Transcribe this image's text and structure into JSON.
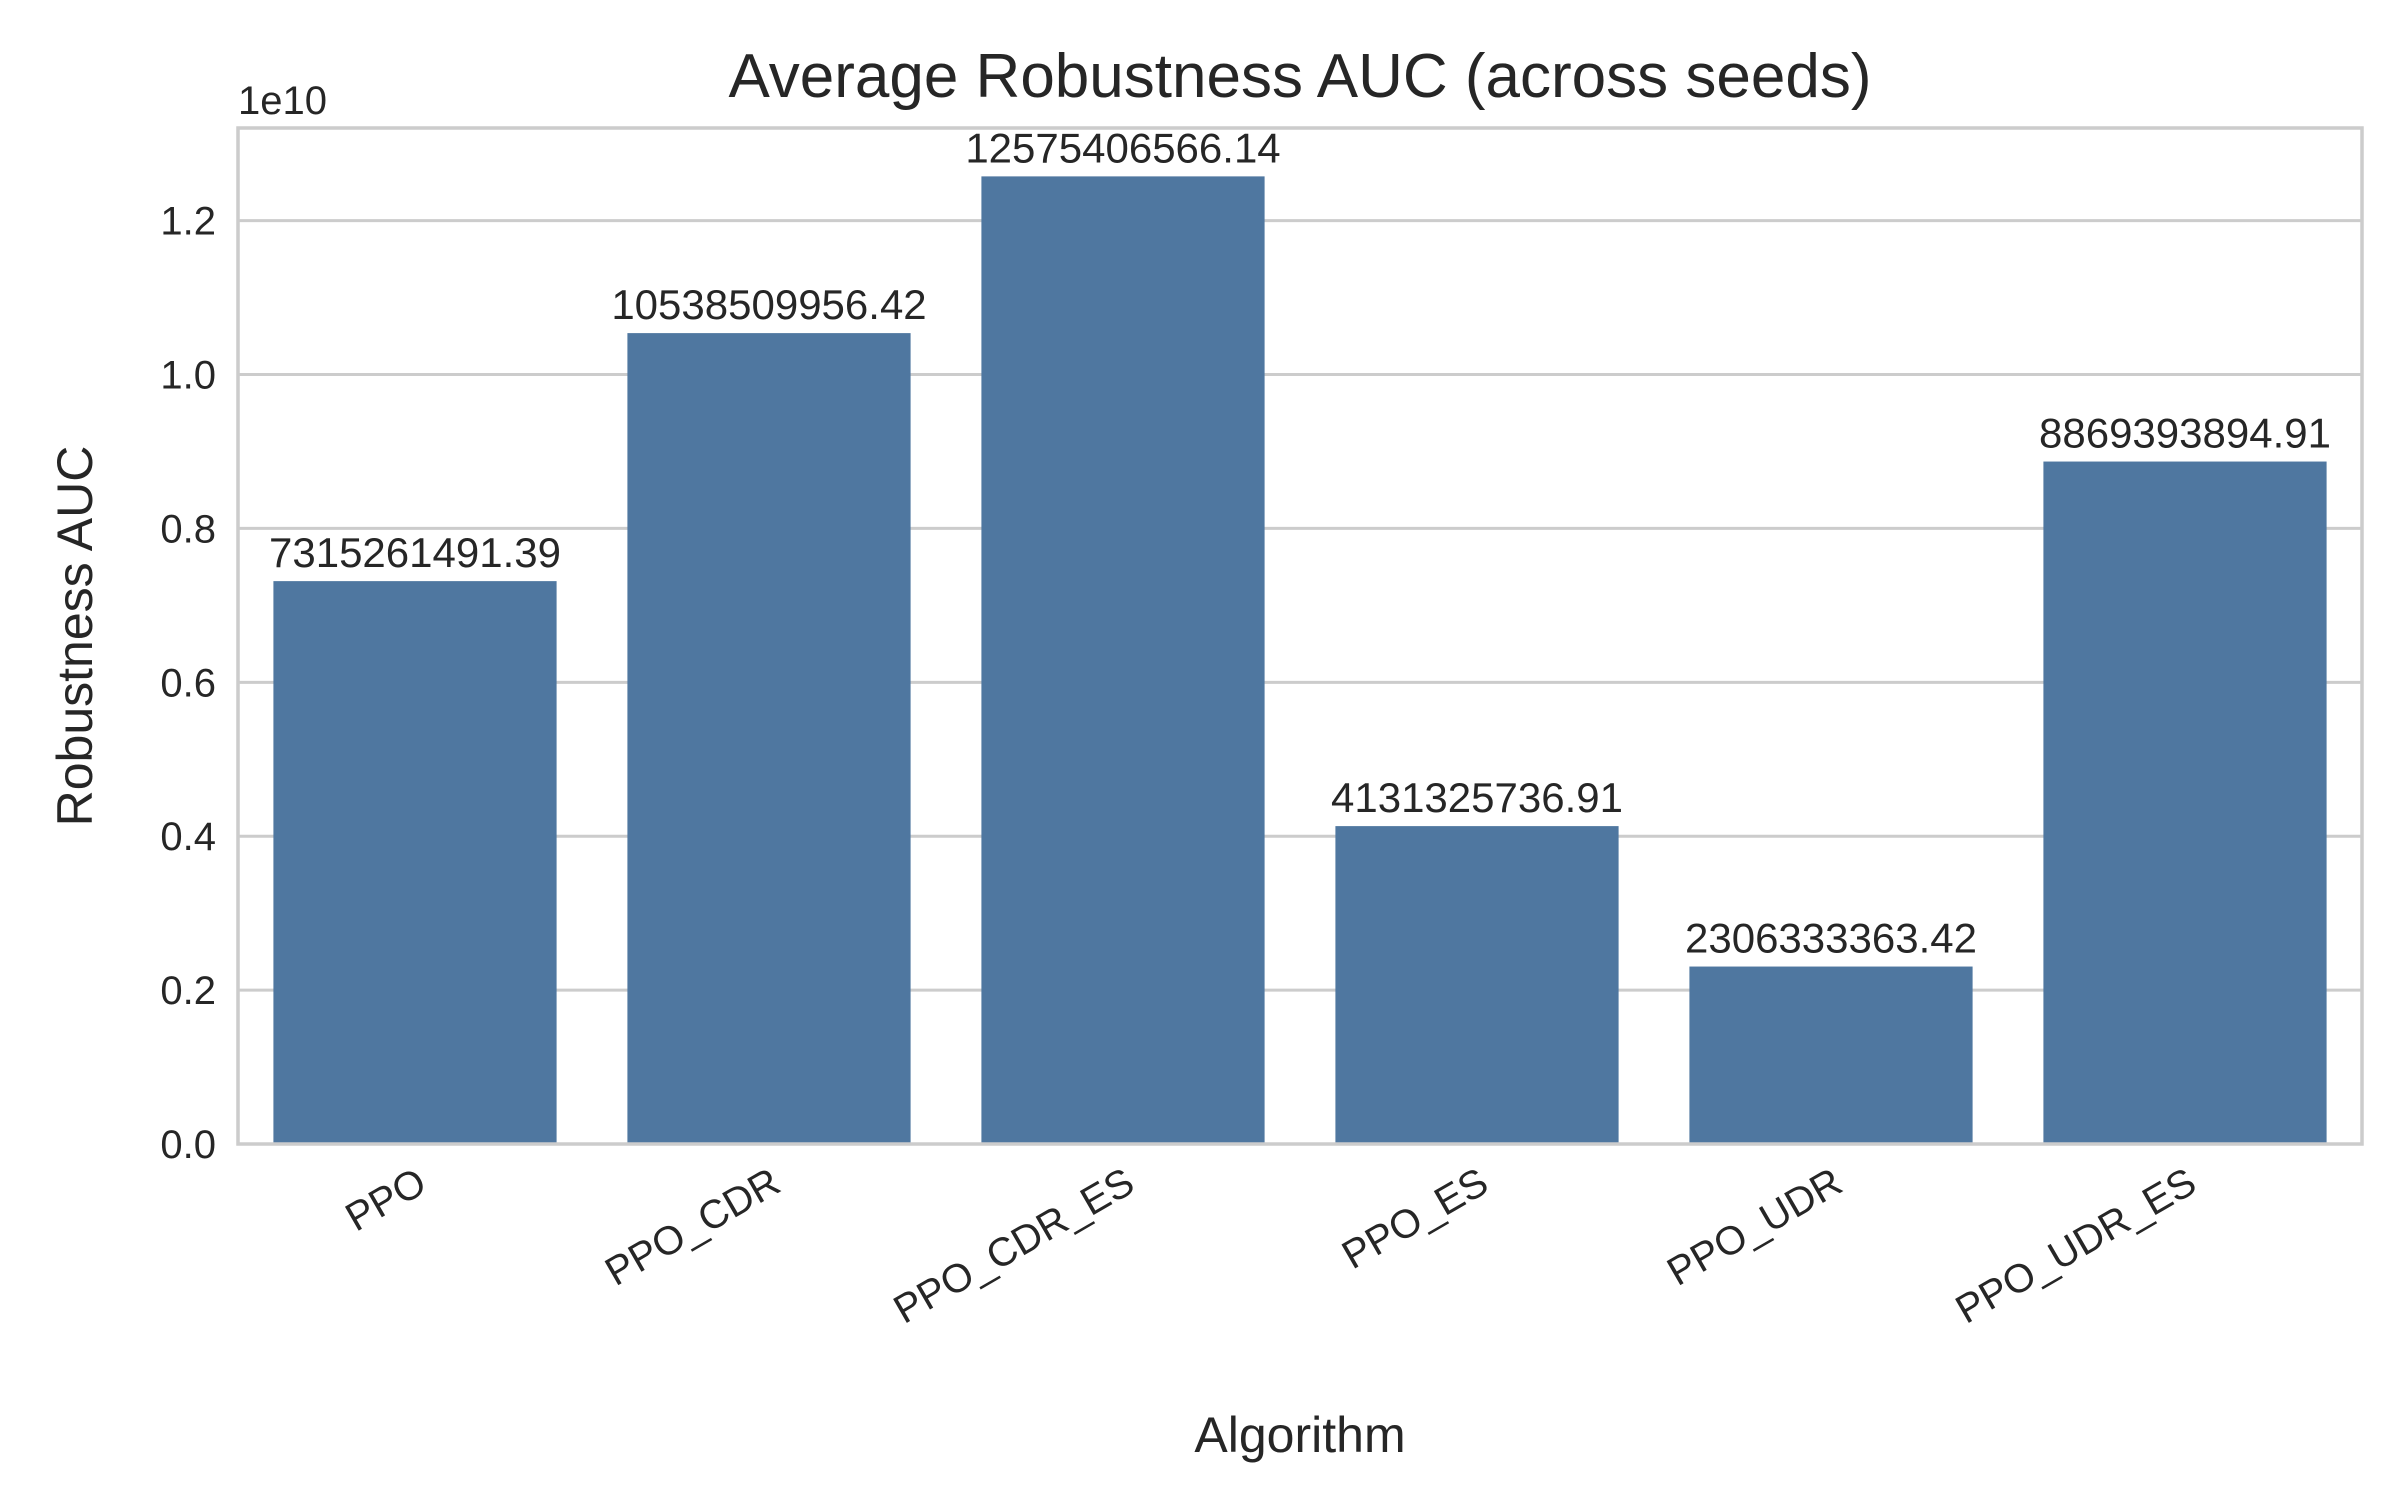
{
  "chart_data": {
    "type": "bar",
    "title": "Average Robustness AUC (across seeds)",
    "xlabel": "Algorithm",
    "ylabel": "Robustness AUC",
    "offset_label": "1e10",
    "categories": [
      "PPO",
      "PPO_CDR",
      "PPO_CDR_ES",
      "PPO_ES",
      "PPO_UDR",
      "PPO_UDR_ES"
    ],
    "values": [
      7315261491.39,
      10538509956.42,
      12575406566.14,
      4131325736.91,
      2306333363.42,
      8869393894.91
    ],
    "data_labels": [
      "7315261491.39",
      "10538509956.42",
      "12575406566.14",
      "4131325736.91",
      "2306333363.42",
      "8869393894.91"
    ],
    "yticks": [
      0.0,
      0.2,
      0.4,
      0.6,
      0.8,
      1.0,
      1.2
    ],
    "ytick_labels": [
      "0.0",
      "0.2",
      "0.4",
      "0.6",
      "0.8",
      "1.0",
      "1.2"
    ],
    "ytick_scale": 10000000000,
    "ylim": [
      0,
      13204176894.45
    ],
    "grid": "horizontal",
    "bar_color": "#4f77a0"
  }
}
